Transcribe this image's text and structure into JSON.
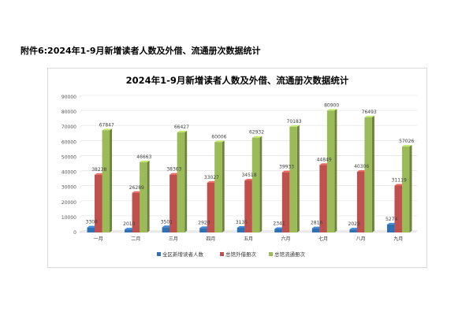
{
  "document": {
    "heading": "附件6:2024年1-9月新增读者人数及外借、流通册次数据统计"
  },
  "colors": {
    "series": [
      "#2f6fb3",
      "#c0504d",
      "#9bbb59"
    ],
    "grid": "#e6e6e6",
    "frame": "#d9d9d9"
  },
  "chart_data": {
    "type": "bar",
    "title": "2024年1-9月新增读者人数及外借、流通册次数据统计",
    "xlabel": "",
    "ylabel": "",
    "ylim": [
      0,
      90000
    ],
    "yticks": [
      0,
      10000,
      20000,
      30000,
      40000,
      50000,
      60000,
      70000,
      80000,
      90000
    ],
    "grid": true,
    "legend_position": "bottom",
    "style": "3d-clustered-column",
    "categories": [
      "一月",
      "二月",
      "三月",
      "四月",
      "五月",
      "六月",
      "七月",
      "八月",
      "九月"
    ],
    "series": [
      {
        "name": "全区新增读者人数",
        "values": [
          3308,
          2010,
          3501,
          2920,
          3135,
          2341,
          2816,
          2023,
          5274
        ]
      },
      {
        "name": "总馆外借册次",
        "values": [
          38238,
          26289,
          38363,
          33027,
          34518,
          39933,
          44849,
          40306,
          31119
        ]
      },
      {
        "name": "总馆流通册次",
        "values": [
          67847,
          46663,
          66427,
          60006,
          62932,
          70183,
          80900,
          76493,
          57026
        ]
      }
    ]
  }
}
